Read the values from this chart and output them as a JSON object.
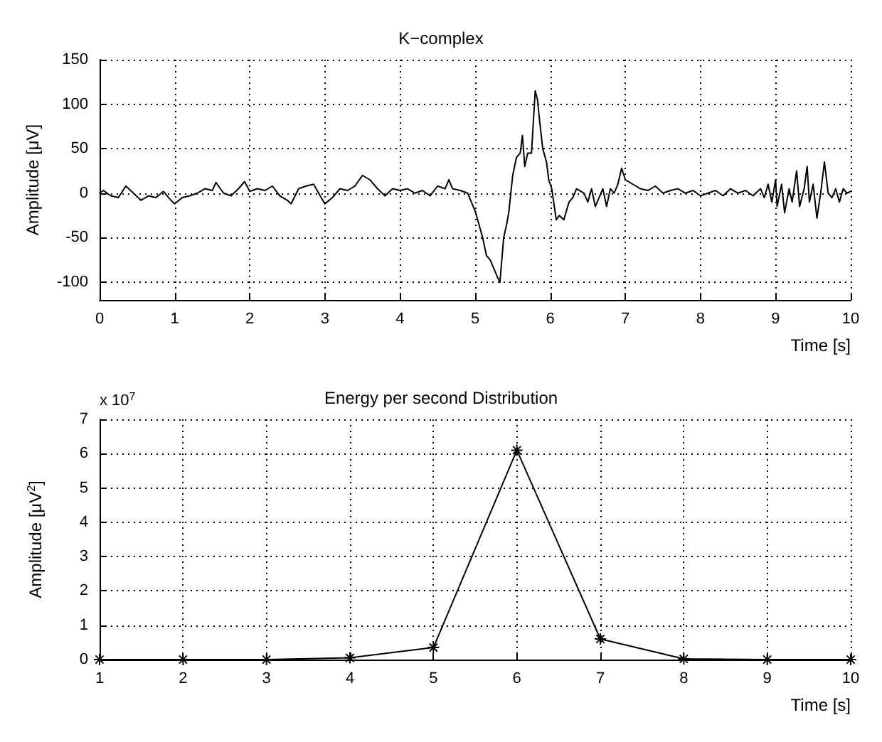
{
  "chart_data": [
    {
      "type": "line",
      "title": "K−complex",
      "xlabel": "Time [s]",
      "ylabel": "Amplitude [μV]",
      "xlim": [
        0,
        10
      ],
      "xticks": [
        0,
        1,
        2,
        3,
        4,
        5,
        6,
        7,
        8,
        9,
        10
      ],
      "ylim": [
        -120,
        150
      ],
      "yticks": [
        -100,
        -50,
        0,
        50,
        100,
        150
      ],
      "grid": true,
      "marker": "none",
      "series": [
        {
          "color": "#000000",
          "x": [
            0,
            0.05,
            0.15,
            0.25,
            0.35,
            0.45,
            0.55,
            0.65,
            0.75,
            0.85,
            0.95,
            1.0,
            1.1,
            1.2,
            1.3,
            1.4,
            1.5,
            1.55,
            1.65,
            1.75,
            1.85,
            1.93,
            2.0,
            2.1,
            2.2,
            2.3,
            2.4,
            2.5,
            2.55,
            2.65,
            2.75,
            2.85,
            2.95,
            3.0,
            3.1,
            3.2,
            3.3,
            3.4,
            3.5,
            3.6,
            3.7,
            3.8,
            3.9,
            4.0,
            4.1,
            4.2,
            4.3,
            4.4,
            4.5,
            4.6,
            4.65,
            4.7,
            4.8,
            4.9,
            5.0,
            5.05,
            5.1,
            5.15,
            5.2,
            5.25,
            5.3,
            5.33,
            5.38,
            5.42,
            5.45,
            5.5,
            5.55,
            5.6,
            5.63,
            5.66,
            5.7,
            5.75,
            5.8,
            5.83,
            5.86,
            5.9,
            5.95,
            5.98,
            6.02,
            6.08,
            6.12,
            6.18,
            6.25,
            6.3,
            6.35,
            6.45,
            6.5,
            6.55,
            6.6,
            6.7,
            6.75,
            6.8,
            6.85,
            6.9,
            6.95,
            7.0,
            7.1,
            7.2,
            7.3,
            7.4,
            7.5,
            7.6,
            7.7,
            7.8,
            7.9,
            8.0,
            8.1,
            8.2,
            8.3,
            8.4,
            8.5,
            8.6,
            8.7,
            8.8,
            8.85,
            8.9,
            8.95,
            9.0,
            9.02,
            9.08,
            9.12,
            9.18,
            9.22,
            9.28,
            9.32,
            9.38,
            9.42,
            9.45,
            9.5,
            9.55,
            9.6,
            9.65,
            9.7,
            9.75,
            9.8,
            9.85,
            9.9,
            9.95,
            10
          ],
          "values": [
            0,
            3,
            -3,
            -5,
            8,
            0,
            -8,
            -3,
            -5,
            2,
            -8,
            -12,
            -5,
            -3,
            0,
            5,
            3,
            12,
            0,
            -3,
            5,
            13,
            2,
            5,
            3,
            8,
            -3,
            -8,
            -12,
            5,
            8,
            10,
            -5,
            -12,
            -5,
            5,
            3,
            8,
            20,
            15,
            5,
            -3,
            5,
            3,
            5,
            0,
            3,
            -3,
            8,
            5,
            15,
            5,
            3,
            0,
            -20,
            -35,
            -50,
            -70,
            -75,
            -85,
            -95,
            -100,
            -50,
            -35,
            -20,
            20,
            40,
            45,
            65,
            30,
            45,
            45,
            115,
            105,
            80,
            50,
            35,
            15,
            5,
            -30,
            -25,
            -30,
            -10,
            -5,
            5,
            0,
            -10,
            5,
            -15,
            5,
            -15,
            5,
            0,
            10,
            28,
            15,
            10,
            5,
            3,
            8,
            0,
            3,
            5,
            0,
            3,
            -3,
            0,
            3,
            -3,
            5,
            0,
            3,
            -3,
            5,
            -5,
            10,
            -10,
            15,
            -15,
            10,
            -22,
            5,
            -10,
            25,
            -15,
            5,
            30,
            -10,
            10,
            -28,
            0,
            35,
            0,
            -5,
            5,
            -10,
            5,
            0,
            2
          ]
        }
      ]
    },
    {
      "type": "line",
      "title": "Energy per second Distribution",
      "xlabel": "Time [s]",
      "ylabel": "Amplitude [μV$^{2}$]",
      "annotations": [
        "x 10$^{7}$"
      ],
      "xlim": [
        1,
        10
      ],
      "xticks": [
        1,
        2,
        3,
        4,
        5,
        6,
        7,
        8,
        9,
        10
      ],
      "ylim": [
        0,
        7
      ],
      "yticks": [
        0,
        1,
        2,
        3,
        4,
        5,
        6,
        7
      ],
      "grid": true,
      "marker": "cross",
      "series": [
        {
          "color": "#000000",
          "x": [
            1,
            2,
            3,
            4,
            5,
            6,
            7,
            8,
            9,
            10
          ],
          "values": [
            0,
            0,
            0,
            0.05,
            0.35,
            6.1,
            0.6,
            0.02,
            0,
            0
          ]
        }
      ]
    }
  ]
}
